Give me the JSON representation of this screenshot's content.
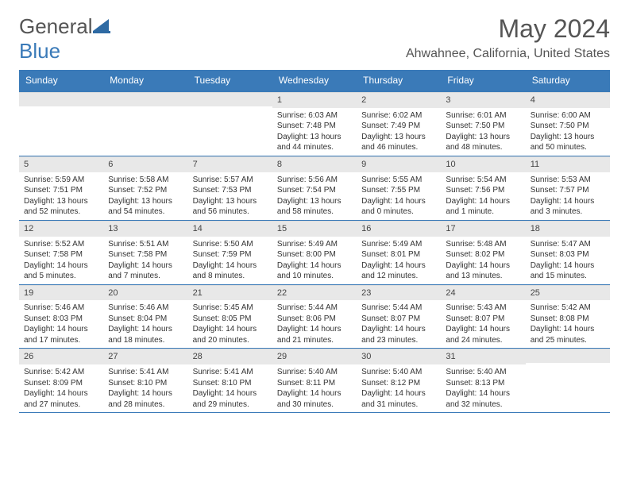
{
  "logo": {
    "part1": "General",
    "part2": "Blue"
  },
  "title": "May 2024",
  "location": "Ahwahnee, California, United States",
  "weekdays": [
    "Sunday",
    "Monday",
    "Tuesday",
    "Wednesday",
    "Thursday",
    "Friday",
    "Saturday"
  ],
  "colors": {
    "header_bg": "#3a7ab8",
    "header_text": "#ffffff",
    "daynum_bg": "#e8e8e8",
    "rule": "#3a7ab8",
    "body_text": "#333333"
  },
  "weeks": [
    [
      {
        "empty": true
      },
      {
        "empty": true
      },
      {
        "empty": true
      },
      {
        "n": "1",
        "sr": "Sunrise: 6:03 AM",
        "ss": "Sunset: 7:48 PM",
        "dl": "Daylight: 13 hours and 44 minutes."
      },
      {
        "n": "2",
        "sr": "Sunrise: 6:02 AM",
        "ss": "Sunset: 7:49 PM",
        "dl": "Daylight: 13 hours and 46 minutes."
      },
      {
        "n": "3",
        "sr": "Sunrise: 6:01 AM",
        "ss": "Sunset: 7:50 PM",
        "dl": "Daylight: 13 hours and 48 minutes."
      },
      {
        "n": "4",
        "sr": "Sunrise: 6:00 AM",
        "ss": "Sunset: 7:50 PM",
        "dl": "Daylight: 13 hours and 50 minutes."
      }
    ],
    [
      {
        "n": "5",
        "sr": "Sunrise: 5:59 AM",
        "ss": "Sunset: 7:51 PM",
        "dl": "Daylight: 13 hours and 52 minutes."
      },
      {
        "n": "6",
        "sr": "Sunrise: 5:58 AM",
        "ss": "Sunset: 7:52 PM",
        "dl": "Daylight: 13 hours and 54 minutes."
      },
      {
        "n": "7",
        "sr": "Sunrise: 5:57 AM",
        "ss": "Sunset: 7:53 PM",
        "dl": "Daylight: 13 hours and 56 minutes."
      },
      {
        "n": "8",
        "sr": "Sunrise: 5:56 AM",
        "ss": "Sunset: 7:54 PM",
        "dl": "Daylight: 13 hours and 58 minutes."
      },
      {
        "n": "9",
        "sr": "Sunrise: 5:55 AM",
        "ss": "Sunset: 7:55 PM",
        "dl": "Daylight: 14 hours and 0 minutes."
      },
      {
        "n": "10",
        "sr": "Sunrise: 5:54 AM",
        "ss": "Sunset: 7:56 PM",
        "dl": "Daylight: 14 hours and 1 minute."
      },
      {
        "n": "11",
        "sr": "Sunrise: 5:53 AM",
        "ss": "Sunset: 7:57 PM",
        "dl": "Daylight: 14 hours and 3 minutes."
      }
    ],
    [
      {
        "n": "12",
        "sr": "Sunrise: 5:52 AM",
        "ss": "Sunset: 7:58 PM",
        "dl": "Daylight: 14 hours and 5 minutes."
      },
      {
        "n": "13",
        "sr": "Sunrise: 5:51 AM",
        "ss": "Sunset: 7:58 PM",
        "dl": "Daylight: 14 hours and 7 minutes."
      },
      {
        "n": "14",
        "sr": "Sunrise: 5:50 AM",
        "ss": "Sunset: 7:59 PM",
        "dl": "Daylight: 14 hours and 8 minutes."
      },
      {
        "n": "15",
        "sr": "Sunrise: 5:49 AM",
        "ss": "Sunset: 8:00 PM",
        "dl": "Daylight: 14 hours and 10 minutes."
      },
      {
        "n": "16",
        "sr": "Sunrise: 5:49 AM",
        "ss": "Sunset: 8:01 PM",
        "dl": "Daylight: 14 hours and 12 minutes."
      },
      {
        "n": "17",
        "sr": "Sunrise: 5:48 AM",
        "ss": "Sunset: 8:02 PM",
        "dl": "Daylight: 14 hours and 13 minutes."
      },
      {
        "n": "18",
        "sr": "Sunrise: 5:47 AM",
        "ss": "Sunset: 8:03 PM",
        "dl": "Daylight: 14 hours and 15 minutes."
      }
    ],
    [
      {
        "n": "19",
        "sr": "Sunrise: 5:46 AM",
        "ss": "Sunset: 8:03 PM",
        "dl": "Daylight: 14 hours and 17 minutes."
      },
      {
        "n": "20",
        "sr": "Sunrise: 5:46 AM",
        "ss": "Sunset: 8:04 PM",
        "dl": "Daylight: 14 hours and 18 minutes."
      },
      {
        "n": "21",
        "sr": "Sunrise: 5:45 AM",
        "ss": "Sunset: 8:05 PM",
        "dl": "Daylight: 14 hours and 20 minutes."
      },
      {
        "n": "22",
        "sr": "Sunrise: 5:44 AM",
        "ss": "Sunset: 8:06 PM",
        "dl": "Daylight: 14 hours and 21 minutes."
      },
      {
        "n": "23",
        "sr": "Sunrise: 5:44 AM",
        "ss": "Sunset: 8:07 PM",
        "dl": "Daylight: 14 hours and 23 minutes."
      },
      {
        "n": "24",
        "sr": "Sunrise: 5:43 AM",
        "ss": "Sunset: 8:07 PM",
        "dl": "Daylight: 14 hours and 24 minutes."
      },
      {
        "n": "25",
        "sr": "Sunrise: 5:42 AM",
        "ss": "Sunset: 8:08 PM",
        "dl": "Daylight: 14 hours and 25 minutes."
      }
    ],
    [
      {
        "n": "26",
        "sr": "Sunrise: 5:42 AM",
        "ss": "Sunset: 8:09 PM",
        "dl": "Daylight: 14 hours and 27 minutes."
      },
      {
        "n": "27",
        "sr": "Sunrise: 5:41 AM",
        "ss": "Sunset: 8:10 PM",
        "dl": "Daylight: 14 hours and 28 minutes."
      },
      {
        "n": "28",
        "sr": "Sunrise: 5:41 AM",
        "ss": "Sunset: 8:10 PM",
        "dl": "Daylight: 14 hours and 29 minutes."
      },
      {
        "n": "29",
        "sr": "Sunrise: 5:40 AM",
        "ss": "Sunset: 8:11 PM",
        "dl": "Daylight: 14 hours and 30 minutes."
      },
      {
        "n": "30",
        "sr": "Sunrise: 5:40 AM",
        "ss": "Sunset: 8:12 PM",
        "dl": "Daylight: 14 hours and 31 minutes."
      },
      {
        "n": "31",
        "sr": "Sunrise: 5:40 AM",
        "ss": "Sunset: 8:13 PM",
        "dl": "Daylight: 14 hours and 32 minutes."
      },
      {
        "empty": true
      }
    ]
  ]
}
